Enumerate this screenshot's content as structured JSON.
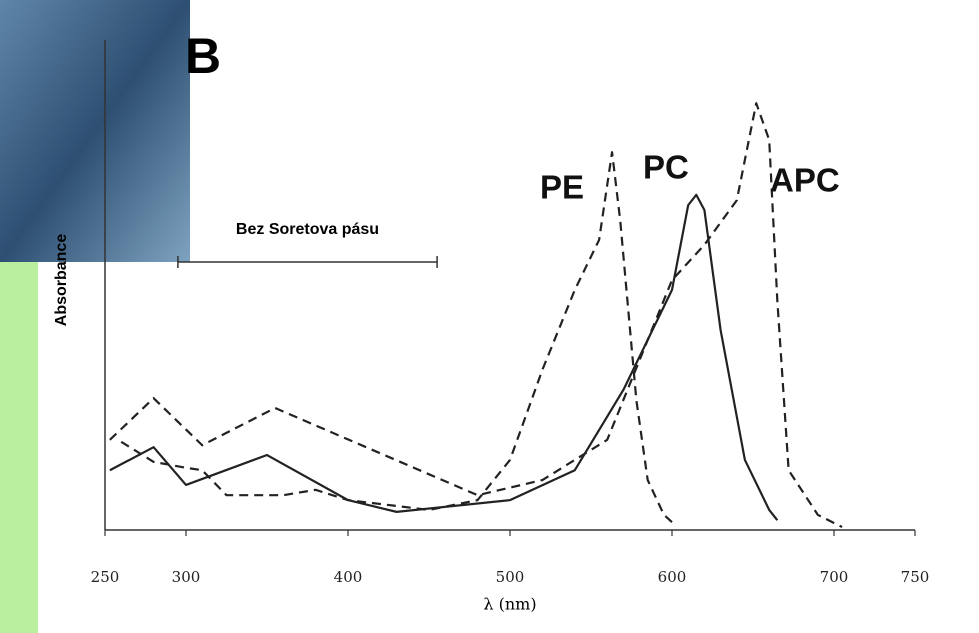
{
  "chart_data": {
    "type": "line",
    "panel_label": "B",
    "ylabel": "Absorbance",
    "xlabel": "λ (nm)",
    "xlim": [
      250,
      750
    ],
    "ylim": [
      0,
      100
    ],
    "xticks": [
      250,
      300,
      400,
      500,
      600,
      700,
      750
    ],
    "annotation": {
      "text": "Bez Soretova pásu",
      "range": [
        295,
        455
      ]
    },
    "series": [
      {
        "name": "PE",
        "color": "#222222",
        "dashed": true,
        "x": [
          260,
          280,
          300,
          310,
          325,
          360,
          380,
          400,
          450,
          480,
          500,
          520,
          540,
          555,
          563,
          568,
          578,
          585,
          595,
          600
        ],
        "values": [
          18.0,
          13.9,
          12.7,
          12.2,
          7.1,
          7.1,
          8.2,
          6.1,
          4.1,
          6.1,
          14.3,
          32.7,
          49.0,
          59.2,
          77.1,
          63.3,
          26.5,
          10.2,
          3.1,
          1.6
        ]
      },
      {
        "name": "PC",
        "color": "#222222",
        "dashed": false,
        "x": [
          253,
          280,
          300,
          350,
          400,
          430,
          500,
          540,
          570,
          600,
          610,
          615,
          620,
          630,
          645,
          660,
          665
        ],
        "values": [
          12.2,
          16.9,
          9.2,
          15.3,
          6.1,
          3.7,
          6.1,
          12.2,
          28.6,
          49.0,
          66.3,
          68.4,
          65.3,
          40.8,
          14.3,
          4.1,
          2.0
        ]
      },
      {
        "name": "APC",
        "color": "#222222",
        "dashed": true,
        "x": [
          253,
          280,
          310,
          355,
          480,
          520,
          560,
          600,
          620,
          640,
          652,
          660,
          665,
          672,
          690,
          705
        ],
        "values": [
          18.4,
          26.9,
          17.3,
          24.9,
          7.1,
          10.2,
          18.4,
          51.0,
          58.2,
          67.3,
          87.1,
          79.6,
          46.9,
          12.2,
          3.1,
          0.6
        ]
      }
    ]
  }
}
